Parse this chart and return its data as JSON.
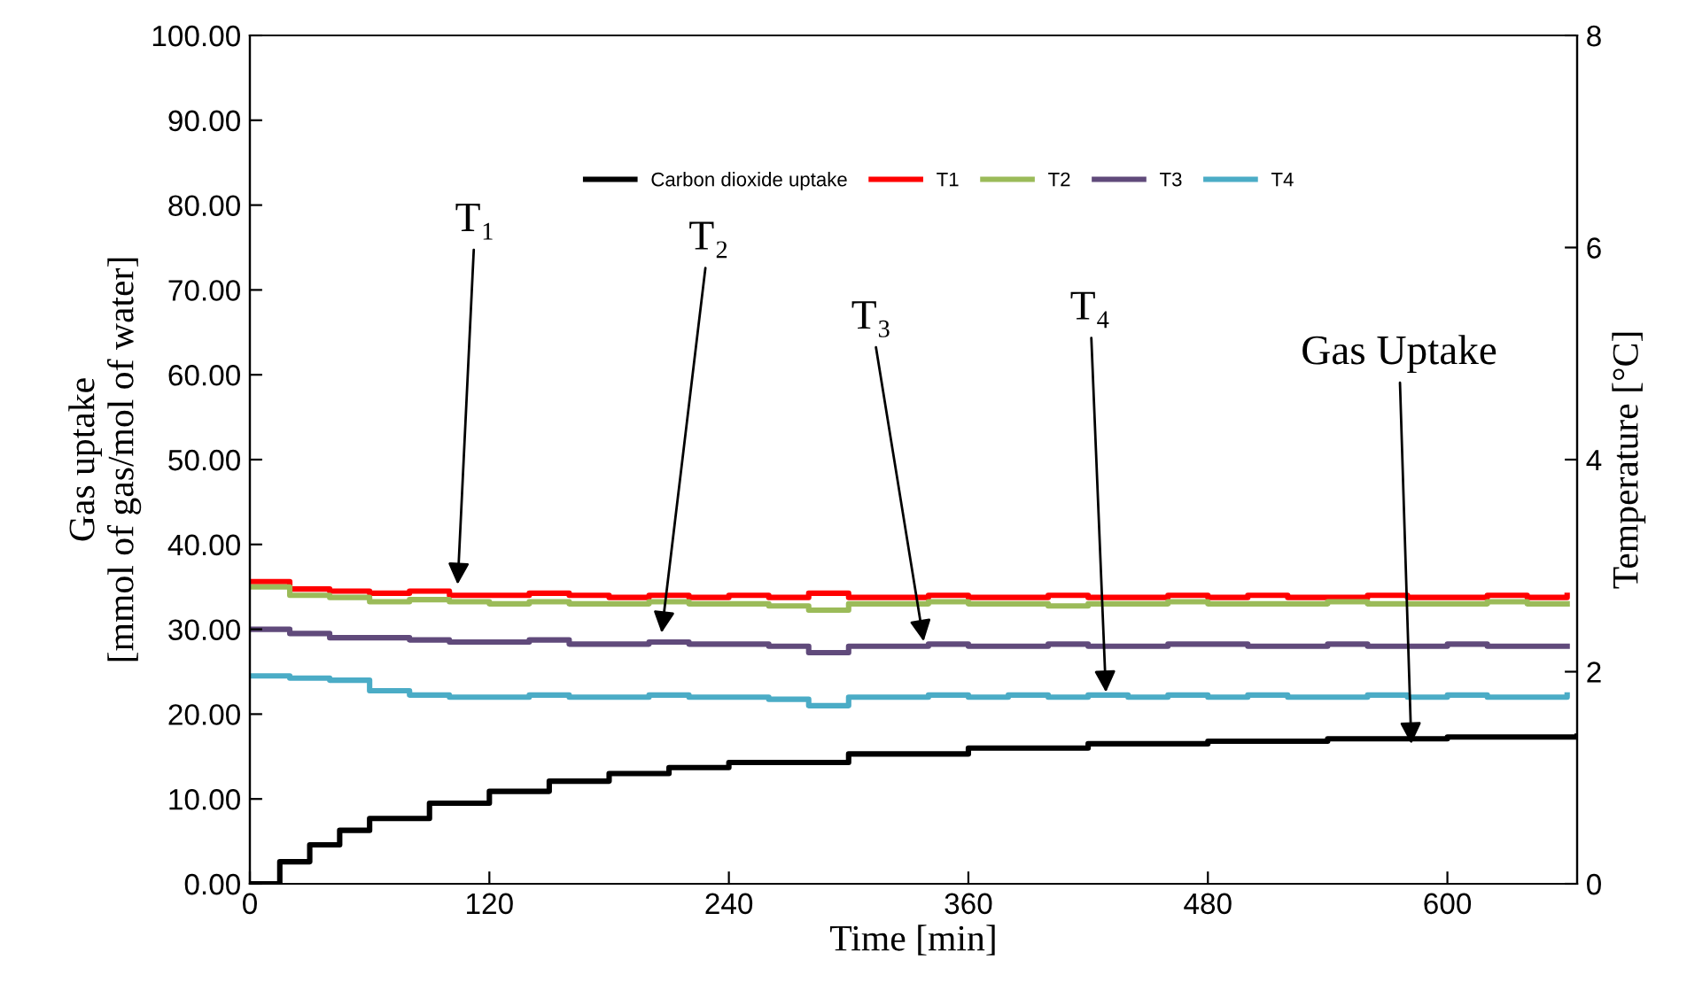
{
  "chart_data": {
    "type": "step",
    "xlabel": "Time [min]",
    "ylabel": "Gas uptake\n[mmol of gas/mol of water]",
    "y2label": "Temperature [°C]",
    "xlim": [
      0,
      665
    ],
    "xticks": [
      0,
      120,
      240,
      360,
      480,
      600
    ],
    "ylim": [
      0,
      100
    ],
    "yticks": [
      {
        "value": 0,
        "label": "0.00"
      },
      {
        "value": 10,
        "label": "10.00"
      },
      {
        "value": 20,
        "label": "20.00"
      },
      {
        "value": 30,
        "label": "30.00"
      },
      {
        "value": 40,
        "label": "40.00"
      },
      {
        "value": 50,
        "label": "50.00"
      },
      {
        "value": 60,
        "label": "60.00"
      },
      {
        "value": 70,
        "label": "70.00"
      },
      {
        "value": 80,
        "label": "80.00"
      },
      {
        "value": 90,
        "label": "90.00"
      },
      {
        "value": 100,
        "label": "100.00"
      }
    ],
    "y2lim": [
      0,
      8
    ],
    "y2ticks": [
      0,
      2,
      4,
      6,
      8
    ],
    "grid": false,
    "legend": "top right",
    "x": [
      0,
      20,
      40,
      60,
      80,
      100,
      120,
      140,
      160,
      180,
      200,
      220,
      240,
      260,
      280,
      300,
      320,
      340,
      360,
      380,
      400,
      420,
      440,
      460,
      480,
      500,
      520,
      540,
      560,
      580,
      600,
      620,
      640,
      660
    ],
    "series": [
      {
        "name": "Carbon dioxide uptake",
        "color": "#000000",
        "x": [
          0,
          15,
          30,
          45,
          60,
          90,
          120,
          150,
          180,
          210,
          240,
          300,
          360,
          420,
          480,
          540,
          600,
          665
        ],
        "values": [
          0,
          2.6,
          4.6,
          6.3,
          7.7,
          9.5,
          10.9,
          12.1,
          13.0,
          13.7,
          14.3,
          15.3,
          16.0,
          16.5,
          16.8,
          17.1,
          17.3,
          17.4
        ]
      },
      {
        "name": "T1",
        "color": "#ff0000",
        "axis": "y2",
        "values": [
          2.85,
          2.78,
          2.76,
          2.74,
          2.76,
          2.72,
          2.72,
          2.74,
          2.72,
          2.7,
          2.72,
          2.7,
          2.72,
          2.7,
          2.74,
          2.7,
          2.7,
          2.72,
          2.7,
          2.7,
          2.72,
          2.7,
          2.7,
          2.72,
          2.7,
          2.72,
          2.7,
          2.7,
          2.72,
          2.7,
          2.7,
          2.72,
          2.7,
          2.72
        ]
      },
      {
        "name": "T2",
        "color": "#9bbb59",
        "axis": "y2",
        "values": [
          2.8,
          2.72,
          2.7,
          2.66,
          2.68,
          2.66,
          2.64,
          2.66,
          2.64,
          2.64,
          2.66,
          2.64,
          2.64,
          2.62,
          2.58,
          2.64,
          2.64,
          2.66,
          2.64,
          2.64,
          2.62,
          2.64,
          2.64,
          2.66,
          2.64,
          2.64,
          2.64,
          2.66,
          2.64,
          2.64,
          2.64,
          2.66,
          2.64,
          2.64
        ]
      },
      {
        "name": "T3",
        "color": "#604a7b",
        "axis": "y2",
        "values": [
          2.4,
          2.36,
          2.32,
          2.32,
          2.3,
          2.28,
          2.28,
          2.3,
          2.26,
          2.26,
          2.28,
          2.26,
          2.26,
          2.24,
          2.18,
          2.24,
          2.24,
          2.26,
          2.24,
          2.24,
          2.26,
          2.24,
          2.24,
          2.26,
          2.26,
          2.24,
          2.24,
          2.26,
          2.24,
          2.24,
          2.26,
          2.24,
          2.24,
          2.24
        ]
      },
      {
        "name": "T4",
        "color": "#4bacc6",
        "axis": "y2",
        "values": [
          1.96,
          1.94,
          1.92,
          1.82,
          1.78,
          1.76,
          1.76,
          1.78,
          1.76,
          1.76,
          1.78,
          1.76,
          1.76,
          1.74,
          1.68,
          1.76,
          1.76,
          1.78,
          1.76,
          1.78,
          1.76,
          1.78,
          1.76,
          1.78,
          1.76,
          1.78,
          1.76,
          1.76,
          1.78,
          1.76,
          1.78,
          1.76,
          1.76,
          1.78
        ]
      }
    ],
    "annotations": [
      {
        "text": "T₁",
        "x": 104,
        "y": 34.7
      },
      {
        "text": "T₂",
        "x": 206,
        "y": 29.0
      },
      {
        "text": "T₃",
        "x": 338,
        "y": 28.0
      },
      {
        "text": "T₄",
        "x": 429,
        "y": 22.0
      },
      {
        "text": "Gas Uptake",
        "x": 582,
        "y": 15.9
      }
    ]
  }
}
